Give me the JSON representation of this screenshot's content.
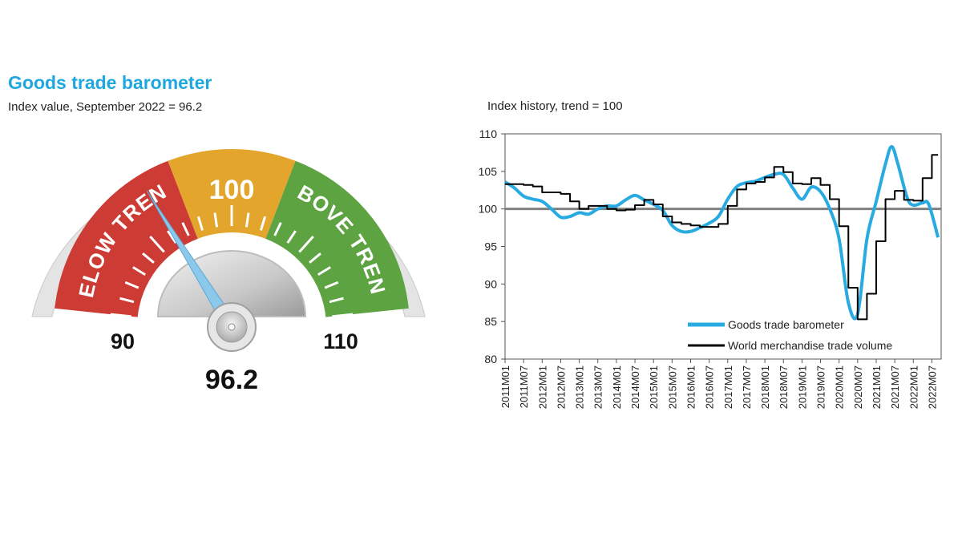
{
  "header": {
    "title": "Goods trade barometer",
    "gauge_subtitle": "Index value, September 2022 = 96.2",
    "chart_title": "Index history, trend = 100"
  },
  "gauge": {
    "min_label": "90",
    "mid_label": "100",
    "max_label": "110",
    "value": 96.2,
    "value_label": "96.2",
    "below_label": "BELOW TREND",
    "above_label": "ABOVE TREND",
    "colors": {
      "below": "#cd3b35",
      "mid": "#e3a52b",
      "above": "#5ea342",
      "needle": "#7fc1e8"
    }
  },
  "chart_data": {
    "type": "line",
    "title": "Index history, trend = 100",
    "ylim": [
      80,
      110
    ],
    "yticks": [
      80,
      85,
      90,
      95,
      100,
      105,
      110
    ],
    "x_tick_labels": [
      "2011M01",
      "2011M07",
      "2012M01",
      "2012M07",
      "2013M01",
      "2013M07",
      "2014M01",
      "2014M07",
      "2015M01",
      "2015M07",
      "2016M01",
      "2016M07",
      "2017M01",
      "2017M07",
      "2018M01",
      "2018M07",
      "2019M01",
      "2019M07",
      "2020M01",
      "2020M07",
      "2021M01",
      "2021M07",
      "2022M01",
      "2022M07"
    ],
    "reference_line": 100,
    "legend_position": "bottom-right",
    "series": [
      {
        "name": "Goods trade barometer",
        "color": "#29abe2",
        "points": [
          [
            "2011M01",
            103.6
          ],
          [
            "2011M04",
            102.8
          ],
          [
            "2011M07",
            101.7
          ],
          [
            "2011M10",
            101.3
          ],
          [
            "2012M01",
            101.0
          ],
          [
            "2012M04",
            100.0
          ],
          [
            "2012M07",
            98.9
          ],
          [
            "2012M10",
            99.0
          ],
          [
            "2013M01",
            99.5
          ],
          [
            "2013M04",
            99.3
          ],
          [
            "2013M07",
            100.0
          ],
          [
            "2013M10",
            100.4
          ],
          [
            "2014M01",
            100.4
          ],
          [
            "2014M04",
            101.2
          ],
          [
            "2014M07",
            101.8
          ],
          [
            "2014M10",
            101.2
          ],
          [
            "2015M01",
            100.6
          ],
          [
            "2015M04",
            99.8
          ],
          [
            "2015M07",
            97.8
          ],
          [
            "2015M10",
            97.0
          ],
          [
            "2016M01",
            97.0
          ],
          [
            "2016M04",
            97.5
          ],
          [
            "2016M07",
            98.1
          ],
          [
            "2016M10",
            99.0
          ],
          [
            "2017M01",
            101.3
          ],
          [
            "2017M04",
            103.0
          ],
          [
            "2017M07",
            103.5
          ],
          [
            "2017M10",
            103.7
          ],
          [
            "2018M01",
            104.2
          ],
          [
            "2018M04",
            104.6
          ],
          [
            "2018M07",
            104.6
          ],
          [
            "2018M10",
            102.8
          ],
          [
            "2019M01",
            101.3
          ],
          [
            "2019M04",
            102.9
          ],
          [
            "2019M07",
            102.3
          ],
          [
            "2019M10",
            100.0
          ],
          [
            "2020M01",
            96.0
          ],
          [
            "2020M04",
            87.5
          ],
          [
            "2020M07",
            86.0
          ],
          [
            "2020M10",
            96.0
          ],
          [
            "2021M01",
            101.0
          ],
          [
            "2021M04",
            106.0
          ],
          [
            "2021M06",
            108.3
          ],
          [
            "2021M08",
            106.0
          ],
          [
            "2021M11",
            101.5
          ],
          [
            "2022M01",
            100.5
          ],
          [
            "2022M04",
            100.8
          ],
          [
            "2022M06",
            100.6
          ],
          [
            "2022M09",
            96.2
          ]
        ]
      },
      {
        "name": "World merchandise trade volume",
        "color": "#000000",
        "points": [
          [
            "2011M01",
            103.3
          ],
          [
            "2011M07",
            103.2
          ],
          [
            "2011M10",
            103.0
          ],
          [
            "2012M01",
            102.2
          ],
          [
            "2012M07",
            102.0
          ],
          [
            "2012M10",
            101.0
          ],
          [
            "2013M01",
            100.0
          ],
          [
            "2013M04",
            100.4
          ],
          [
            "2013M07",
            100.4
          ],
          [
            "2013M10",
            100.0
          ],
          [
            "2014M01",
            99.8
          ],
          [
            "2014M04",
            99.9
          ],
          [
            "2014M07",
            100.5
          ],
          [
            "2014M10",
            101.2
          ],
          [
            "2015M01",
            100.6
          ],
          [
            "2015M04",
            99.0
          ],
          [
            "2015M07",
            98.2
          ],
          [
            "2015M10",
            98.0
          ],
          [
            "2016M01",
            97.8
          ],
          [
            "2016M04",
            97.6
          ],
          [
            "2016M07",
            97.6
          ],
          [
            "2016M10",
            98.0
          ],
          [
            "2017M01",
            100.4
          ],
          [
            "2017M04",
            102.6
          ],
          [
            "2017M07",
            103.4
          ],
          [
            "2017M10",
            103.6
          ],
          [
            "2018M01",
            104.2
          ],
          [
            "2018M04",
            105.6
          ],
          [
            "2018M07",
            104.9
          ],
          [
            "2018M10",
            103.4
          ],
          [
            "2019M01",
            103.3
          ],
          [
            "2019M04",
            104.1
          ],
          [
            "2019M07",
            103.2
          ],
          [
            "2019M10",
            101.3
          ],
          [
            "2020M01",
            97.7
          ],
          [
            "2020M04",
            89.5
          ],
          [
            "2020M07",
            85.3
          ],
          [
            "2020M10",
            88.7
          ],
          [
            "2021M01",
            95.7
          ],
          [
            "2021M04",
            101.3
          ],
          [
            "2021M07",
            102.4
          ],
          [
            "2021M10",
            101.2
          ],
          [
            "2022M01",
            101.1
          ],
          [
            "2022M04",
            104.1
          ],
          [
            "2022M07",
            107.2
          ],
          [
            "2022M09",
            107.2
          ]
        ]
      }
    ]
  }
}
